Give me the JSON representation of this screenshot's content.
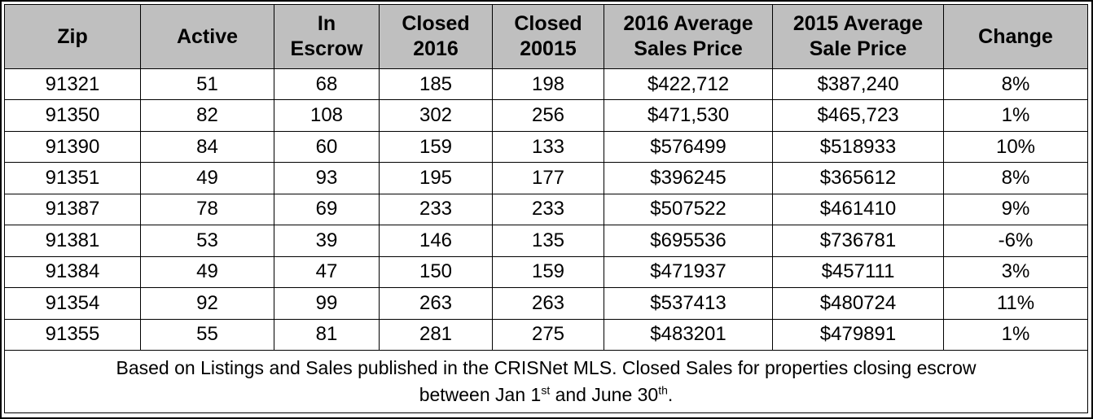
{
  "headers": [
    {
      "line1": "Zip",
      "line2": ""
    },
    {
      "line1": "Active",
      "line2": ""
    },
    {
      "line1": "In",
      "line2": "Escrow"
    },
    {
      "line1": "Closed",
      "line2": "2016"
    },
    {
      "line1": "Closed",
      "line2": "20015"
    },
    {
      "line1": "2016 Average",
      "line2": "Sales Price"
    },
    {
      "line1": "2015 Average",
      "line2": "Sale Price"
    },
    {
      "line1": "Change",
      "line2": ""
    }
  ],
  "rows": [
    [
      "91321",
      "51",
      "68",
      "185",
      "198",
      "$422,712",
      "$387,240",
      "8%"
    ],
    [
      "91350",
      "82",
      "108",
      "302",
      "256",
      "$471,530",
      "$465,723",
      "1%"
    ],
    [
      "91390",
      "84",
      "60",
      "159",
      "133",
      "$576499",
      "$518933",
      "10%"
    ],
    [
      "91351",
      "49",
      "93",
      "195",
      "177",
      "$396245",
      "$365612",
      "8%"
    ],
    [
      "91387",
      "78",
      "69",
      "233",
      "233",
      "$507522",
      "$461410",
      "9%"
    ],
    [
      "91381",
      "53",
      "39",
      "146",
      "135",
      "$695536",
      "$736781",
      "-6%"
    ],
    [
      "91384",
      "49",
      "47",
      "150",
      "159",
      "$471937",
      "$457111",
      "3%"
    ],
    [
      "91354",
      "92",
      "99",
      "263",
      "263",
      "$537413",
      "$480724",
      "11%"
    ],
    [
      "91355",
      "55",
      "81",
      "281",
      "275",
      "$483201",
      "$479891",
      "1%"
    ]
  ],
  "note": {
    "line1": "Based on Listings and Sales published in the CRISNet MLS. Closed Sales for properties closing escrow",
    "line2_a": "between Jan 1",
    "line2_sup1": "st",
    "line2_b": " and June 30",
    "line2_sup2": "th",
    "line2_c": "."
  }
}
